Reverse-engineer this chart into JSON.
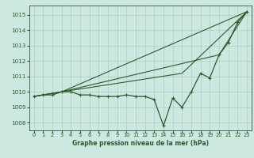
{
  "title": "Graphe pression niveau de la mer (hPa)",
  "background_color": "#cce8e0",
  "grid_color": "#a8cfc4",
  "line_color": "#2d5a27",
  "series": {
    "line1": {
      "x": [
        0,
        1,
        2,
        3,
        4,
        5,
        6,
        7,
        8,
        9,
        10,
        11,
        12,
        13,
        14,
        15,
        16,
        17,
        18,
        19,
        20,
        21,
        22,
        23
      ],
      "y": [
        1009.7,
        1009.8,
        1009.8,
        1010.0,
        1010.0,
        1009.8,
        1009.8,
        1009.7,
        1009.7,
        1009.7,
        1009.8,
        1009.7,
        1009.7,
        1009.5,
        1007.8,
        1009.6,
        1009.0,
        1010.0,
        1011.2,
        1010.9,
        1012.4,
        1013.2,
        1014.5,
        1015.2
      ]
    },
    "line2": {
      "x": [
        0,
        3,
        23
      ],
      "y": [
        1009.7,
        1010.0,
        1015.2
      ]
    },
    "line3": {
      "x": [
        0,
        3,
        16,
        23
      ],
      "y": [
        1009.7,
        1010.0,
        1011.2,
        1015.2
      ]
    },
    "line4": {
      "x": [
        0,
        3,
        20,
        23
      ],
      "y": [
        1009.7,
        1010.0,
        1012.4,
        1015.2
      ]
    }
  },
  "xlim": [
    -0.5,
    23.5
  ],
  "ylim": [
    1007.5,
    1015.6
  ],
  "yticks": [
    1008,
    1009,
    1010,
    1011,
    1012,
    1013,
    1014,
    1015
  ],
  "xticks": [
    0,
    1,
    2,
    3,
    4,
    5,
    6,
    7,
    8,
    9,
    10,
    11,
    12,
    13,
    14,
    15,
    16,
    17,
    18,
    19,
    20,
    21,
    22,
    23
  ],
  "xlabel_fontsize": 5.5,
  "tick_fontsize": 4.8,
  "ytick_fontsize": 5.2
}
